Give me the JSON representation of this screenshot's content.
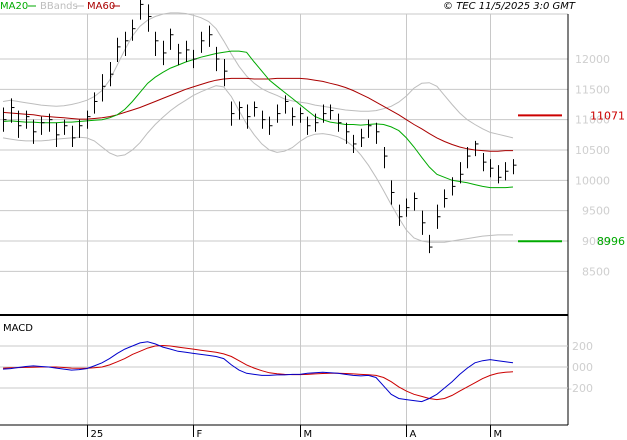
{
  "header": {
    "ma20_label": "MA20",
    "bbands_label": "BBands",
    "ma60_label": "MA60",
    "copyright": "© TEC 11/5/2025 3:0 GMT"
  },
  "colors": {
    "ma20": "#00aa00",
    "bbands": "#bdbdbd",
    "ma60": "#aa0000",
    "price": "#000000",
    "macd": "#0000cc",
    "signal": "#cc0000",
    "grid": "#c8c8c8",
    "axis_text": "#cfcfcf"
  },
  "chart_data": [
    {
      "type": "line",
      "name": "price",
      "y_ticks": [
        "12000",
        "11500",
        "11000",
        "10500",
        "10000",
        "9500",
        "9000",
        "8500"
      ],
      "x_ticks": [
        "25",
        "F",
        "M",
        "A",
        "M"
      ],
      "ylim": [
        8000,
        12800
      ],
      "callouts": [
        {
          "label": "11071",
          "value": 11071,
          "color": "#cc0000"
        },
        {
          "label": "8996",
          "value": 8996,
          "color": "#00aa00"
        }
      ],
      "series": [
        {
          "name": "MA20",
          "values": [
            10970,
            10980,
            10970,
            10960,
            10960,
            10950,
            10950,
            10950,
            10960,
            10960,
            10970,
            10980,
            10990,
            11000,
            11030,
            11080,
            11170,
            11300,
            11450,
            11600,
            11700,
            11780,
            11850,
            11900,
            11950,
            11990,
            12030,
            12060,
            12090,
            12110,
            12130,
            12130,
            12110,
            11950,
            11800,
            11650,
            11550,
            11450,
            11350,
            11250,
            11150,
            11050,
            11000,
            10960,
            10940,
            10920,
            10920,
            10910,
            10920,
            10930,
            10920,
            10880,
            10820,
            10700,
            10550,
            10380,
            10220,
            10100,
            10050,
            10000,
            9980,
            9960,
            9930,
            9900,
            9880,
            9880,
            9880,
            9890
          ]
        },
        {
          "name": "BBands_upper",
          "values": [
            11300,
            11320,
            11300,
            11280,
            11260,
            11240,
            11230,
            11220,
            11230,
            11250,
            11280,
            11320,
            11380,
            11480,
            11650,
            11900,
            12150,
            12380,
            12540,
            12640,
            12700,
            12740,
            12760,
            12760,
            12750,
            12720,
            12680,
            12620,
            12500,
            12300,
            12080,
            11880,
            11720,
            11600,
            11510,
            11450,
            11400,
            11340,
            11310,
            11290,
            11270,
            11240,
            11220,
            11200,
            11180,
            11160,
            11150,
            11140,
            11140,
            11150,
            11180,
            11220,
            11290,
            11390,
            11520,
            11600,
            11610,
            11550,
            11400,
            11250,
            11110,
            11000,
            10920,
            10850,
            10790,
            10760,
            10730,
            10700
          ]
        },
        {
          "name": "BBands_lower",
          "values": [
            10700,
            10680,
            10660,
            10650,
            10650,
            10650,
            10660,
            10680,
            10690,
            10700,
            10710,
            10700,
            10650,
            10550,
            10450,
            10400,
            10420,
            10500,
            10620,
            10780,
            10920,
            11040,
            11150,
            11240,
            11320,
            11400,
            11460,
            11510,
            11560,
            11540,
            11380,
            11150,
            10930,
            10750,
            10600,
            10500,
            10460,
            10480,
            10540,
            10640,
            10720,
            10760,
            10770,
            10750,
            10720,
            10660,
            10560,
            10420,
            10250,
            10050,
            9830,
            9600,
            9380,
            9180,
            9050,
            9000,
            8980,
            8980,
            8980,
            9000,
            9020,
            9040,
            9060,
            9080,
            9090,
            9100,
            9100,
            9100
          ]
        },
        {
          "name": "MA60",
          "values": [
            11120,
            11110,
            11100,
            11090,
            11080,
            11060,
            11050,
            11040,
            11030,
            11020,
            11010,
            11010,
            11020,
            11030,
            11050,
            11080,
            11120,
            11160,
            11200,
            11250,
            11300,
            11350,
            11400,
            11450,
            11500,
            11540,
            11580,
            11620,
            11650,
            11670,
            11680,
            11680,
            11680,
            11670,
            11670,
            11670,
            11680,
            11680,
            11680,
            11680,
            11670,
            11650,
            11630,
            11600,
            11570,
            11530,
            11480,
            11420,
            11360,
            11290,
            11220,
            11150,
            11080,
            11000,
            10920,
            10850,
            10770,
            10700,
            10640,
            10590,
            10550,
            10520,
            10500,
            10490,
            10480,
            10480,
            10490,
            10490
          ]
        },
        {
          "name": "Close",
          "values": [
            11000,
            11200,
            10900,
            11050,
            10800,
            10950,
            11000,
            10750,
            10900,
            10700,
            10900,
            11050,
            11300,
            11550,
            11750,
            12200,
            12300,
            12500,
            12900,
            12700,
            12300,
            12100,
            12400,
            12100,
            12150,
            12000,
            12300,
            12400,
            12000,
            11800,
            11100,
            11200,
            11050,
            11200,
            11000,
            10900,
            11100,
            11300,
            11050,
            11100,
            10900,
            10950,
            11100,
            11150,
            10950,
            10800,
            10600,
            10700,
            10900,
            10800,
            10400,
            9800,
            9400,
            9550,
            9700,
            9300,
            8900,
            9400,
            9700,
            9900,
            10100,
            10400,
            10600,
            10300,
            10200,
            10050,
            10150,
            10250
          ]
        },
        {
          "name": "High",
          "values": [
            11200,
            11350,
            11150,
            11150,
            11000,
            11050,
            11100,
            10950,
            11000,
            10900,
            11000,
            11150,
            11450,
            11750,
            11950,
            12350,
            12450,
            12650,
            13000,
            12900,
            12450,
            12300,
            12500,
            12250,
            12300,
            12150,
            12450,
            12550,
            12200,
            12000,
            11300,
            11300,
            11250,
            11300,
            11150,
            11050,
            11250,
            11400,
            11200,
            11200,
            11050,
            11100,
            11250,
            11250,
            11100,
            10950,
            10750,
            10850,
            11000,
            10950,
            10550,
            10000,
            9600,
            9700,
            9800,
            9500,
            9100,
            9600,
            9850,
            10050,
            10300,
            10550,
            10650,
            10450,
            10350,
            10250,
            10300,
            10350
          ]
        },
        {
          "name": "Low",
          "values": [
            10800,
            10950,
            10700,
            10850,
            10600,
            10750,
            10800,
            10550,
            10750,
            10550,
            10700,
            10850,
            11100,
            11300,
            11550,
            11950,
            12050,
            12300,
            12650,
            12450,
            12050,
            11900,
            12150,
            11900,
            11950,
            11850,
            12100,
            12200,
            11800,
            11550,
            10900,
            11000,
            10850,
            11050,
            10850,
            10750,
            10950,
            11100,
            10900,
            10950,
            10750,
            10800,
            10950,
            11000,
            10800,
            10600,
            10450,
            10550,
            10700,
            10600,
            10200,
            9600,
            9250,
            9400,
            9500,
            9100,
            8800,
            9200,
            9550,
            9750,
            9950,
            10200,
            10400,
            10150,
            10050,
            9950,
            10000,
            10100
          ]
        }
      ]
    },
    {
      "type": "line",
      "name": "MACD",
      "title": "MACD",
      "y_ticks": [
        "200",
        "000",
        "-200"
      ],
      "ylim": [
        -400,
        300
      ],
      "series": [
        {
          "name": "MACD",
          "values": [
            -20,
            -15,
            -5,
            5,
            10,
            5,
            0,
            -10,
            -20,
            -30,
            -25,
            -15,
            10,
            40,
            80,
            130,
            170,
            200,
            230,
            240,
            220,
            190,
            170,
            150,
            140,
            130,
            120,
            110,
            100,
            80,
            20,
            -30,
            -60,
            -70,
            -80,
            -80,
            -75,
            -75,
            -70,
            -70,
            -60,
            -55,
            -50,
            -55,
            -60,
            -70,
            -80,
            -85,
            -80,
            -100,
            -180,
            -260,
            -300,
            -310,
            -320,
            -330,
            -300,
            -260,
            -200,
            -140,
            -70,
            -10,
            40,
            60,
            70,
            60,
            50,
            40
          ]
        },
        {
          "name": "Signal",
          "values": [
            -10,
            -8,
            -6,
            -4,
            -2,
            0,
            0,
            0,
            -5,
            -10,
            -12,
            -12,
            -8,
            0,
            20,
            50,
            80,
            120,
            150,
            180,
            200,
            205,
            200,
            190,
            180,
            170,
            160,
            150,
            140,
            125,
            100,
            60,
            20,
            -10,
            -35,
            -55,
            -65,
            -70,
            -72,
            -72,
            -70,
            -66,
            -62,
            -60,
            -60,
            -62,
            -66,
            -70,
            -74,
            -80,
            -100,
            -140,
            -190,
            -230,
            -260,
            -280,
            -300,
            -310,
            -300,
            -270,
            -230,
            -190,
            -150,
            -110,
            -80,
            -60,
            -50,
            -45
          ]
        }
      ]
    }
  ]
}
